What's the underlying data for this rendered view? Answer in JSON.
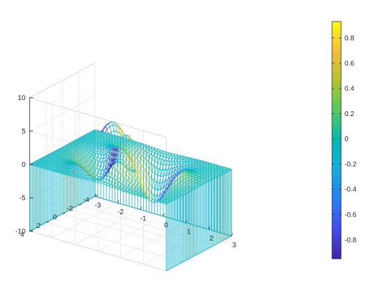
{
  "chart_data": {
    "type": "surface",
    "title": "",
    "xlabel": "",
    "ylabel": "",
    "zlabel": "",
    "xlim": [
      -3,
      3
    ],
    "ylim": [
      -4,
      4
    ],
    "zlim": [
      -10,
      10
    ],
    "x_ticks": [
      "-3",
      "-2",
      "-1",
      "0",
      "1",
      "2",
      "3"
    ],
    "y_ticks": [
      "-4",
      "-2",
      "0",
      "2",
      "4"
    ],
    "z_ticks": [
      "-10",
      "-5",
      "0",
      "5",
      "10"
    ],
    "colorbar": {
      "ticks": [
        "-0.8",
        "-0.6",
        "-0.4",
        "-0.2",
        "0",
        "0.2",
        "0.4",
        "0.6",
        "0.8"
      ],
      "range": [
        -0.95,
        0.93
      ],
      "colormap": "parula"
    },
    "surface_samples": [
      {
        "x": -3,
        "y": -4,
        "z": 0.0
      },
      {
        "x": 0,
        "y": 1.6,
        "z": 8.1
      },
      {
        "x": 0,
        "y": -1.6,
        "z": -6.5
      },
      {
        "x": -1.3,
        "y": 0,
        "z": 3.8
      },
      {
        "x": 1.3,
        "y": 0,
        "z": -3.8
      },
      {
        "x": 3,
        "y": 4,
        "z": 0.0
      }
    ],
    "style": "mesh with curtain skirt",
    "grid": true,
    "box": true
  }
}
